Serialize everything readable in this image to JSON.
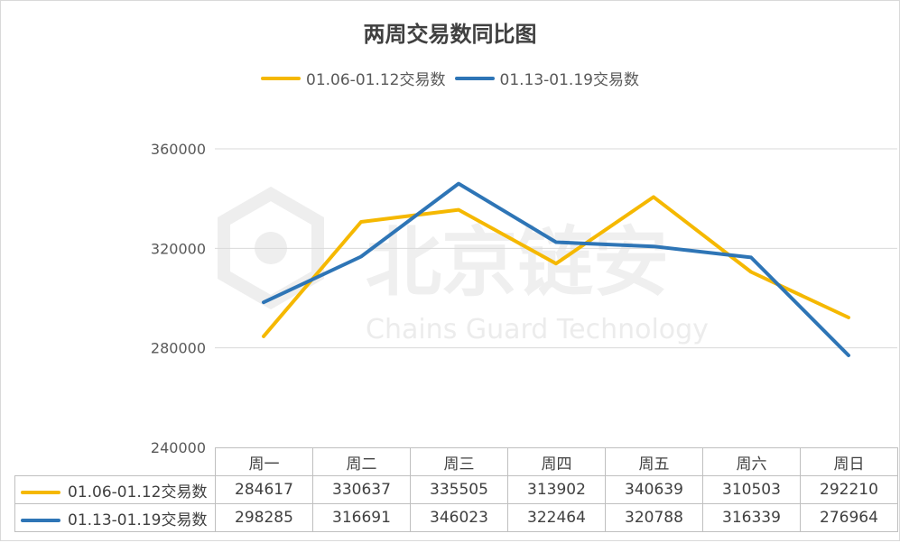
{
  "chart_data": {
    "type": "line",
    "title": "两周交易数同比图",
    "categories": [
      "周一",
      "周二",
      "周三",
      "周四",
      "周五",
      "周六",
      "周日"
    ],
    "series": [
      {
        "name": "01.06-01.12交易数",
        "color": "#f5b800",
        "values": [
          284617,
          330637,
          335505,
          313902,
          340639,
          310503,
          292210
        ]
      },
      {
        "name": "01.13-01.19交易数",
        "color": "#2e75b6",
        "values": [
          298285,
          316691,
          346023,
          322464,
          320788,
          316339,
          276964
        ]
      }
    ],
    "y_ticks": [
      "360000",
      "320000",
      "280000",
      "240000"
    ],
    "ylim": [
      240000,
      360000
    ],
    "grid": true,
    "legend_position": "top",
    "data_table": true
  },
  "watermark": {
    "name": "北京链安",
    "subtitle": "Chains Guard Technology"
  }
}
